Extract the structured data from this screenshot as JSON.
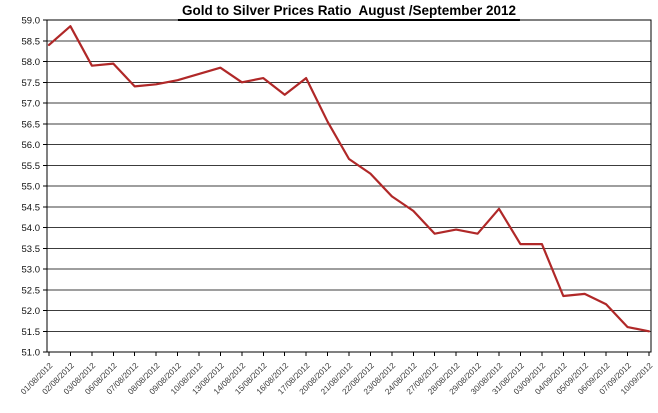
{
  "chart_data": {
    "type": "line",
    "title": "Gold to Silver Prices Ratio  August /September 2012",
    "xlabel": "",
    "ylabel": "",
    "legend_position": "none",
    "grid": "on",
    "ylim": [
      51.0,
      59.0
    ],
    "ytick_step": 0.5,
    "y_ticks": [
      "59.0",
      "58.5",
      "58.0",
      "57.5",
      "57.0",
      "56.5",
      "56.0",
      "55.5",
      "55.0",
      "54.5",
      "54.0",
      "53.5",
      "53.0",
      "52.5",
      "52.0",
      "51.5",
      "51.0"
    ],
    "categories": [
      "01/08/2012",
      "02/08/2012",
      "03/08/2012",
      "06/08/2012",
      "07/08/2012",
      "08/08/2012",
      "09/08/2012",
      "10/08/2012",
      "13/08/2012",
      "14/08/2012",
      "15/08/2012",
      "16/08/2012",
      "17/08/2012",
      "20/08/2012",
      "21/08/2012",
      "22/08/2012",
      "23/08/2012",
      "24/08/2012",
      "27/08/2012",
      "28/08/2012",
      "29/08/2012",
      "30/08/2012",
      "31/08/2012",
      "03/09/2012",
      "04/09/2012",
      "05/09/2012",
      "06/09/2012",
      "07/09/2012",
      "10/09/2012"
    ],
    "values": [
      58.4,
      58.85,
      57.9,
      57.95,
      57.4,
      57.45,
      57.55,
      57.7,
      57.85,
      57.5,
      57.6,
      57.2,
      57.6,
      56.55,
      55.65,
      55.3,
      54.75,
      54.4,
      53.85,
      53.95,
      53.85,
      54.45,
      53.6,
      53.6,
      52.35,
      52.4,
      52.15,
      51.6,
      51.5
    ],
    "colors": {
      "line": "#b02828",
      "grid": "#3c3c3c",
      "axis": "#000000",
      "title": "#000000",
      "y_labels": "#111111",
      "x_labels": "#383838",
      "background": "#ffffff"
    }
  }
}
